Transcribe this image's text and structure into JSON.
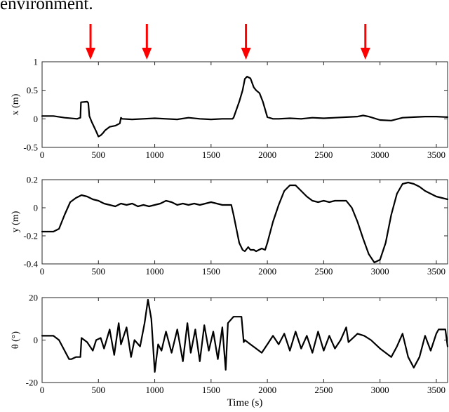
{
  "heading": "environment.",
  "chart_data": [
    {
      "type": "line",
      "title": "",
      "xlabel": "",
      "ylabel": "x (m)",
      "xlim": [
        0,
        3600
      ],
      "ylim": [
        -0.5,
        1
      ],
      "xticks": [
        0,
        500,
        1000,
        1500,
        2000,
        2500,
        3000,
        3500
      ],
      "yticks": [
        -0.5,
        0,
        0.5,
        1
      ],
      "xtick_labels": [
        "0",
        "500",
        "1000",
        "1500",
        "2000",
        "2500",
        "3000",
        "3500"
      ],
      "ytick_labels": [
        "-0.5",
        "0",
        "0.5",
        "1"
      ],
      "grid": false,
      "series_color": "#000000",
      "markers_color": "#ff0000",
      "marker_times": [
        430,
        930,
        1810,
        2870
      ],
      "series": [
        {
          "x": [
            0,
            100,
            200,
            310,
            340,
            345,
            400,
            410,
            420,
            440,
            480,
            500,
            520,
            540,
            560,
            600,
            650,
            690,
            700,
            710,
            800,
            900,
            1000,
            1100,
            1200,
            1300,
            1400,
            1500,
            1600,
            1690,
            1700,
            1750,
            1780,
            1800,
            1820,
            1850,
            1880,
            1900,
            1930,
            1960,
            2000,
            2050,
            2100,
            2200,
            2300,
            2400,
            2500,
            2600,
            2700,
            2800,
            2850,
            2900,
            3000,
            3100,
            3200,
            3300,
            3400,
            3500,
            3600
          ],
          "y": [
            0.05,
            0.05,
            0.02,
            0.0,
            0.02,
            0.29,
            0.3,
            0.28,
            0.05,
            -0.05,
            -0.22,
            -0.31,
            -0.29,
            -0.25,
            -0.2,
            -0.14,
            -0.12,
            -0.08,
            0.02,
            0.0,
            -0.01,
            0.0,
            0.01,
            0.0,
            -0.01,
            0.02,
            0.0,
            -0.01,
            0.0,
            0.0,
            0.02,
            0.3,
            0.5,
            0.7,
            0.74,
            0.71,
            0.55,
            0.5,
            0.45,
            0.3,
            0.03,
            0.0,
            0.0,
            0.01,
            0.0,
            0.02,
            0.01,
            0.02,
            0.03,
            0.04,
            0.06,
            0.04,
            -0.02,
            -0.03,
            0.02,
            0.03,
            0.04,
            0.04,
            0.03
          ]
        }
      ]
    },
    {
      "type": "line",
      "title": "",
      "xlabel": "",
      "ylabel": "y (m)",
      "xlim": [
        0,
        3600
      ],
      "ylim": [
        -0.4,
        0.2
      ],
      "xticks": [
        0,
        500,
        1000,
        1500,
        2000,
        2500,
        3000,
        3500
      ],
      "yticks": [
        -0.4,
        -0.2,
        0,
        0.2
      ],
      "xtick_labels": [
        "0",
        "500",
        "1000",
        "1500",
        "2000",
        "2500",
        "3000",
        "3500"
      ],
      "ytick_labels": [
        "-0.4",
        "-0.2",
        "0",
        "0.2"
      ],
      "grid": false,
      "series_color": "#000000",
      "series": [
        {
          "x": [
            0,
            100,
            150,
            200,
            250,
            300,
            350,
            400,
            450,
            500,
            550,
            600,
            650,
            700,
            750,
            800,
            850,
            900,
            950,
            1000,
            1050,
            1100,
            1150,
            1200,
            1250,
            1300,
            1350,
            1400,
            1450,
            1500,
            1550,
            1600,
            1650,
            1680,
            1700,
            1750,
            1780,
            1800,
            1830,
            1850,
            1880,
            1900,
            1950,
            1980,
            2000,
            2050,
            2100,
            2150,
            2200,
            2250,
            2300,
            2350,
            2400,
            2450,
            2500,
            2550,
            2600,
            2650,
            2700,
            2750,
            2800,
            2850,
            2900,
            2950,
            3000,
            3050,
            3100,
            3150,
            3200,
            3250,
            3300,
            3350,
            3400,
            3450,
            3500,
            3550,
            3600
          ],
          "y": [
            -0.17,
            -0.17,
            -0.15,
            -0.05,
            0.04,
            0.07,
            0.09,
            0.08,
            0.06,
            0.05,
            0.03,
            0.02,
            0.01,
            0.03,
            0.02,
            0.03,
            0.01,
            0.02,
            0.01,
            0.02,
            0.03,
            0.05,
            0.04,
            0.02,
            0.03,
            0.02,
            0.03,
            0.02,
            0.03,
            0.04,
            0.03,
            0.02,
            0.02,
            0.02,
            -0.05,
            -0.25,
            -0.3,
            -0.31,
            -0.28,
            -0.3,
            -0.3,
            -0.31,
            -0.29,
            -0.3,
            -0.25,
            -0.1,
            0.02,
            0.12,
            0.16,
            0.16,
            0.12,
            0.08,
            0.05,
            0.04,
            0.05,
            0.04,
            0.05,
            0.05,
            0.05,
            0.0,
            -0.1,
            -0.22,
            -0.33,
            -0.39,
            -0.37,
            -0.25,
            -0.05,
            0.1,
            0.17,
            0.18,
            0.17,
            0.15,
            0.12,
            0.1,
            0.08,
            0.07,
            0.06
          ]
        }
      ]
    },
    {
      "type": "line",
      "title": "",
      "xlabel": "Time (s)",
      "ylabel": "θ (°)",
      "xlim": [
        0,
        3600
      ],
      "ylim": [
        -20,
        20
      ],
      "xticks": [
        0,
        500,
        1000,
        1500,
        2000,
        2500,
        3000,
        3500
      ],
      "yticks": [
        -20,
        0,
        20
      ],
      "xtick_labels": [
        "0",
        "500",
        "1000",
        "1500",
        "2000",
        "2500",
        "3000",
        "3500"
      ],
      "ytick_labels": [
        "-20",
        "0",
        "20"
      ],
      "grid": false,
      "series_color": "#000000",
      "series": [
        {
          "x": [
            0,
            100,
            150,
            200,
            240,
            260,
            300,
            340,
            350,
            400,
            450,
            480,
            520,
            550,
            600,
            640,
            680,
            700,
            750,
            790,
            820,
            870,
            910,
            940,
            970,
            1000,
            1030,
            1060,
            1100,
            1150,
            1200,
            1250,
            1290,
            1320,
            1360,
            1400,
            1440,
            1480,
            1520,
            1560,
            1600,
            1630,
            1650,
            1700,
            1770,
            1790,
            1800,
            1850,
            1900,
            1950,
            2000,
            2050,
            2100,
            2150,
            2200,
            2250,
            2300,
            2350,
            2400,
            2450,
            2500,
            2550,
            2600,
            2650,
            2700,
            2720,
            2800,
            2860,
            2920,
            3000,
            3050,
            3100,
            3150,
            3200,
            3250,
            3300,
            3350,
            3400,
            3450,
            3500,
            3520,
            3580,
            3600
          ],
          "y": [
            2,
            2,
            0,
            -5,
            -9,
            -9,
            -8,
            -8,
            1,
            -1,
            -5,
            0,
            1,
            -4,
            5,
            -7,
            8,
            -2,
            6,
            -8,
            0,
            -3,
            8,
            19,
            10,
            -15,
            -2,
            -5,
            4,
            -6,
            5,
            -10,
            8,
            -6,
            5,
            -10,
            7,
            -5,
            4,
            -9,
            6,
            -14,
            8,
            11,
            11,
            -1,
            0,
            -2,
            -4,
            -6,
            -2,
            2,
            -2,
            3,
            -5,
            4,
            -4,
            2,
            -6,
            4,
            -5,
            2,
            -4,
            0,
            6,
            -1,
            3,
            2,
            0,
            -4,
            -6,
            -8,
            -3,
            3,
            -8,
            -13,
            -8,
            2,
            -5,
            3,
            5,
            5,
            -3
          ]
        }
      ]
    }
  ]
}
